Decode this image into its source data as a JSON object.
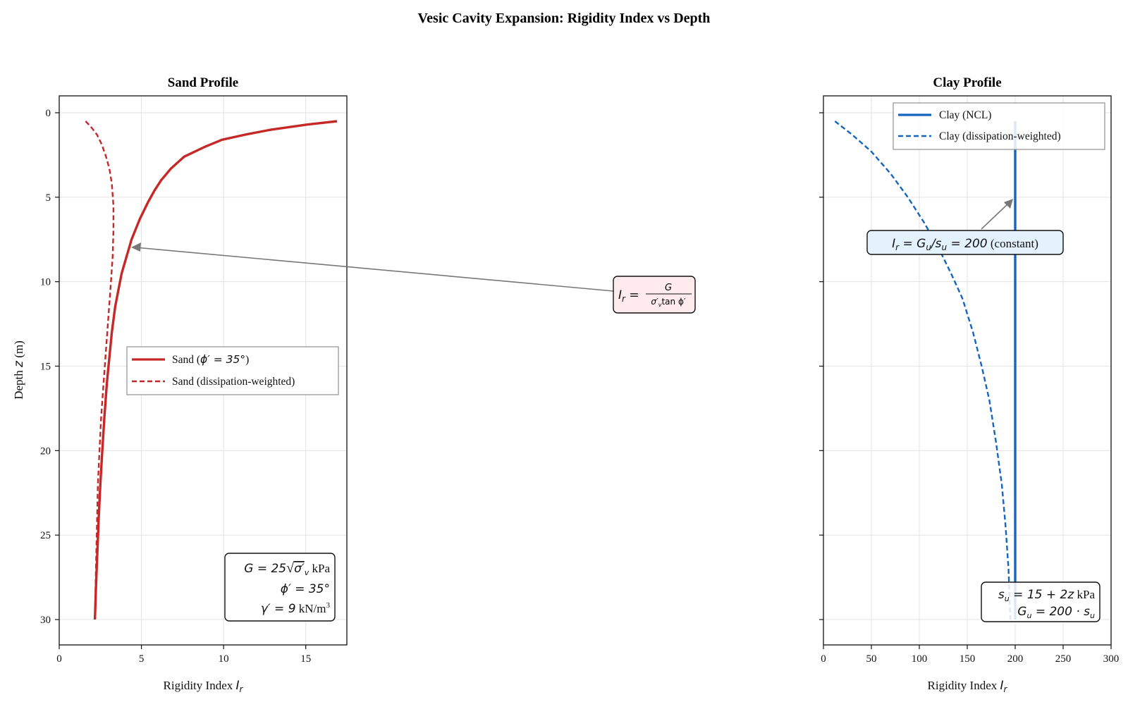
{
  "figure": {
    "suptitle": "Vesic Cavity Expansion: Rigidity Index vs Depth"
  },
  "chart_data": [
    {
      "type": "line",
      "title": "Sand Profile",
      "xlabel_text": "Rigidity Index ",
      "xlabel_symbol": "I",
      "xlabel_sub": "r",
      "ylabel_text": "Depth ",
      "ylabel_symbol": "z",
      "ylabel_unit": " (m)",
      "xlim": [
        0,
        17.5
      ],
      "ylim": [
        31.5,
        -1
      ],
      "y_inverted": true,
      "xticks": [
        0,
        5,
        10,
        15
      ],
      "yticks": [
        0,
        5,
        10,
        15,
        20,
        25,
        30
      ],
      "grid": true,
      "legend_position": "center-right",
      "series": [
        {
          "name_text": "Sand (",
          "name_math": "ϕ′ = 35°",
          "name_close": ")",
          "style": "solid",
          "color": "#c62828",
          "x": [
            16.9,
            15.1,
            12.9,
            11.3,
            9.9,
            8.9,
            7.6,
            6.8,
            6.2,
            5.8,
            5.4,
            4.9,
            4.4,
            4.1,
            3.8,
            3.6,
            3.4,
            3.2,
            3.05,
            2.9,
            2.75,
            2.62,
            2.5,
            2.4,
            2.32,
            2.24,
            2.17
          ],
          "y": [
            0.5,
            0.7,
            1.0,
            1.3,
            1.6,
            2.0,
            2.6,
            3.3,
            4.0,
            4.6,
            5.3,
            6.3,
            7.5,
            8.5,
            9.5,
            10.5,
            11.5,
            13.0,
            14.5,
            16.0,
            18.0,
            20.0,
            22.0,
            24.0,
            26.0,
            28.0,
            30.0
          ]
        },
        {
          "name_text": "Sand (dissipation-weighted)",
          "style": "dashed",
          "color": "#c62828",
          "x": [
            1.6,
            1.9,
            2.3,
            2.6,
            2.85,
            3.05,
            3.2,
            3.3,
            3.3,
            3.25,
            3.15,
            3.0,
            2.85,
            2.7,
            2.55,
            2.45,
            2.35,
            2.28,
            2.22,
            2.17
          ],
          "y": [
            0.5,
            0.8,
            1.3,
            1.9,
            2.6,
            3.3,
            4.2,
            5.5,
            7.0,
            8.5,
            10.0,
            12.0,
            14.0,
            16.0,
            18.0,
            20.0,
            22.0,
            25.0,
            27.5,
            30.0
          ]
        }
      ],
      "annotations": {
        "formula_box": "I_r = G / (σ′_v tan ϕ′)",
        "formula_main": "I",
        "formula_sub": "r",
        "formula_num": "G",
        "formula_den": "σ′",
        "formula_den_sub": "v",
        "formula_den_tail": "tan ϕ′",
        "params_line1_math": "G = 25",
        "params_line1_root": "σ′",
        "params_line1_root_sub": "v",
        "params_line1_unit": " kPa",
        "params_line2": "ϕ′ = 35°",
        "params_line3_math": "γ′ = 9",
        "params_line3_unit": " kN/m",
        "params_line3_sup": "3"
      }
    },
    {
      "type": "line",
      "title": "Clay Profile",
      "xlabel_text": "Rigidity Index ",
      "xlabel_symbol": "I",
      "xlabel_sub": "r",
      "xlim": [
        0,
        300
      ],
      "ylim": [
        31.5,
        -1
      ],
      "y_inverted": true,
      "xticks": [
        0,
        50,
        100,
        150,
        200,
        250,
        300
      ],
      "yticks": [
        0,
        5,
        10,
        15,
        20,
        25,
        30
      ],
      "grid": true,
      "legend_position": "top-right",
      "series": [
        {
          "name_text": "Clay (NCL)",
          "style": "solid",
          "color": "#1565c0",
          "x": [
            200,
            200
          ],
          "y": [
            0.5,
            30.0
          ]
        },
        {
          "name_text": "Clay (dissipation-weighted)",
          "style": "dashed",
          "color": "#1565c0",
          "x": [
            12,
            30,
            50,
            70,
            88,
            105,
            120,
            133,
            145,
            156,
            165,
            173,
            180,
            186,
            190,
            193,
            195
          ],
          "y": [
            0.5,
            1.3,
            2.3,
            3.6,
            5.0,
            6.5,
            8.0,
            9.5,
            11.0,
            13.0,
            15.0,
            17.0,
            19.5,
            22.0,
            24.5,
            27.0,
            30.0
          ]
        }
      ],
      "annotations": {
        "constant_box_math": "I",
        "constant_box_sub": "r",
        "constant_box_mid": " = G",
        "constant_box_sub2": "u",
        "constant_box_mid2": "/s",
        "constant_box_sub3": "u",
        "constant_box_tail": " = 200",
        "constant_box_text": " (constant)",
        "params_line1_math": "s",
        "params_line1_sub": "u",
        "params_line1_mid": " = 15 + 2z",
        "params_line1_unit": " kPa",
        "params_line2_math": "G",
        "params_line2_sub": "u",
        "params_line2_mid": " = 200 · s",
        "params_line2_sub2": "u"
      }
    }
  ]
}
